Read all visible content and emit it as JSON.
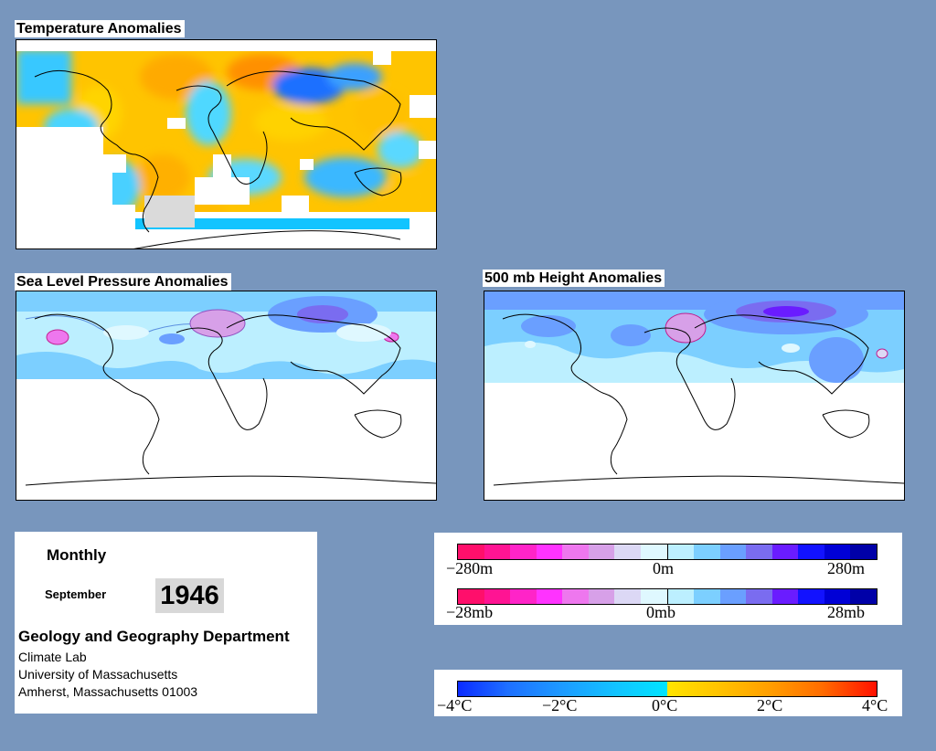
{
  "panels": {
    "temperature": {
      "title": "Temperature Anomalies"
    },
    "slp": {
      "title": "Sea Level Pressure Anomalies"
    },
    "height500": {
      "title": "500 mb Height Anomalies"
    }
  },
  "info": {
    "frequency": "Monthly",
    "month": "September",
    "year": "1946",
    "department": "Geology and Geography Department",
    "lab": "Climate Lab",
    "university": "University of Massachusetts",
    "address": "Amherst, Massachusetts 01003"
  },
  "legends": {
    "height": {
      "ticks": [
        "−280m",
        "0m",
        "280m"
      ]
    },
    "pressure": {
      "ticks": [
        "−28mb",
        "0mb",
        "28mb"
      ]
    },
    "temperature": {
      "ticks": [
        "−4°C",
        "−2°C",
        "0°C",
        "2°C",
        "4°C"
      ]
    }
  },
  "colors": {
    "background": "#7896bd",
    "anomaly_scale": [
      "#ff0f6b",
      "#ff1493",
      "#ff24c8",
      "#ff33ff",
      "#ee77ee",
      "#d7a0e8",
      "#dcd8f5",
      "#dff8ff",
      "#bcefff",
      "#7ccfff",
      "#6a9fff",
      "#7a6cf0",
      "#6a1cff",
      "#1212ff",
      "#0000d6",
      "#0000a8"
    ],
    "temperature_scale": [
      "#0b2bff",
      "#1e70ff",
      "#1d9bff",
      "#12c4ff",
      "#00e4ff",
      "#ffe400",
      "#ffc400",
      "#ff9c00",
      "#ff6c00",
      "#ff2400"
    ]
  }
}
